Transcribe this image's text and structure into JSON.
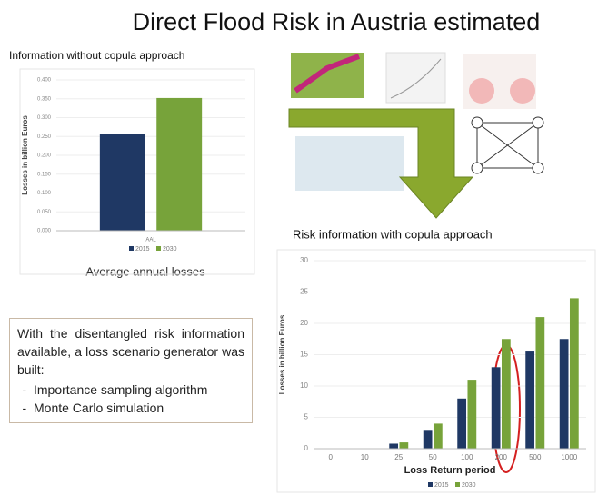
{
  "slide": {
    "title": "Direct Flood Risk in Austria estimated",
    "caption": "Average annual losses",
    "note": {
      "text": "With the disentangled risk information available, a loss scenario generator was built:",
      "items": [
        "Importance sampling algorithm",
        "Monte Carlo simulation"
      ]
    }
  },
  "chart_data": [
    {
      "type": "bar",
      "title": "Information without copula approach",
      "ylabel": "Losses in billion Euros",
      "categories": [
        "AAL"
      ],
      "series": [
        {
          "name": "2015",
          "color": "#1f3864",
          "values": [
            0.257
          ]
        },
        {
          "name": "2030",
          "color": "#77a33a",
          "values": [
            0.352
          ]
        }
      ],
      "ylim": [
        0,
        0.4
      ],
      "yticks": [
        {
          "value": 0,
          "label": "0.000"
        },
        {
          "value": 0.05,
          "label": "0.050"
        },
        {
          "value": 0.1,
          "label": "0.100"
        },
        {
          "value": 0.15,
          "label": "0.150"
        },
        {
          "value": 0.2,
          "label": "0.200"
        },
        {
          "value": 0.25,
          "label": "0.250"
        },
        {
          "value": 0.3,
          "label": "0.300"
        },
        {
          "value": 0.35,
          "label": "0.350"
        },
        {
          "value": 0.4,
          "label": "0.400"
        }
      ],
      "grid": true
    },
    {
      "type": "bar",
      "title": "Risk information with copula approach",
      "ylabel": "Losses in billion Euros",
      "xlabel": "Loss Return period",
      "categories": [
        "0",
        "10",
        "25",
        "50",
        "100",
        "200",
        "500",
        "1000"
      ],
      "series": [
        {
          "name": "2015",
          "color": "#1f3864",
          "values": [
            0,
            0,
            0.8,
            3,
            8,
            13,
            15.5,
            17.5
          ]
        },
        {
          "name": "2030",
          "color": "#77a33a",
          "values": [
            0,
            0,
            1,
            4,
            11,
            17.5,
            21,
            24
          ]
        }
      ],
      "ylim": [
        0,
        30
      ],
      "yticks": [
        0,
        5,
        10,
        15,
        20,
        25,
        30
      ],
      "grid": true
    }
  ]
}
